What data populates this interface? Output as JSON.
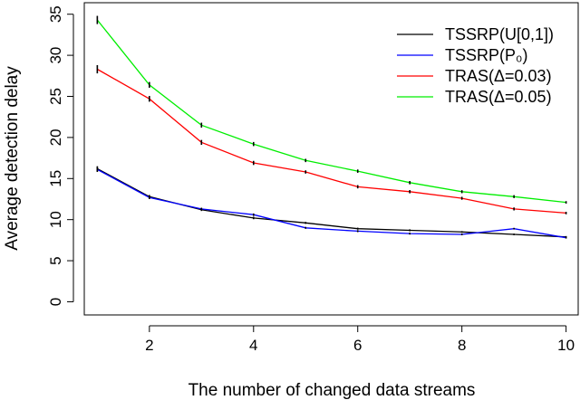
{
  "chart_data": {
    "type": "line",
    "title": "",
    "xlabel": "The number of changed data streams",
    "ylabel": "Average detection delay",
    "x": [
      1,
      2,
      3,
      4,
      5,
      6,
      7,
      8,
      9,
      10
    ],
    "xlim": [
      0.75,
      10.25
    ],
    "ylim": [
      -1.6,
      36.4
    ],
    "xticks": [
      2,
      4,
      6,
      8,
      10
    ],
    "yticks": [
      0,
      5,
      10,
      15,
      20,
      25,
      30,
      35
    ],
    "grid": false,
    "legend_position": "top-right",
    "error_bars": true,
    "series": [
      {
        "name": "TSSRP(U[0,1])",
        "color": "#000000",
        "values": [
          16.2,
          12.8,
          11.2,
          10.2,
          9.6,
          8.9,
          8.7,
          8.5,
          8.2,
          7.9
        ],
        "err": [
          0.3,
          0.2,
          0.15,
          0.15,
          0.12,
          0.12,
          0.12,
          0.1,
          0.1,
          0.1
        ]
      },
      {
        "name": "TSSRP(P₀)",
        "color": "#0000ff",
        "values": [
          16.1,
          12.7,
          11.3,
          10.6,
          9.0,
          8.6,
          8.3,
          8.2,
          8.9,
          7.8
        ],
        "err": [
          0.3,
          0.2,
          0.15,
          0.15,
          0.12,
          0.12,
          0.12,
          0.1,
          0.1,
          0.1
        ]
      },
      {
        "name": "TRAS(Δ=0.03)",
        "color": "#ff0000",
        "values": [
          28.3,
          24.7,
          19.4,
          16.9,
          15.8,
          14.0,
          13.4,
          12.6,
          11.3,
          10.8
        ],
        "err": [
          0.5,
          0.35,
          0.3,
          0.25,
          0.2,
          0.2,
          0.2,
          0.18,
          0.18,
          0.15
        ]
      },
      {
        "name": "TRAS(Δ=0.05)",
        "color": "#00ee00",
        "values": [
          34.3,
          26.4,
          21.5,
          19.2,
          17.2,
          15.9,
          14.5,
          13.4,
          12.8,
          12.1
        ],
        "err": [
          0.5,
          0.35,
          0.3,
          0.25,
          0.2,
          0.2,
          0.2,
          0.18,
          0.18,
          0.15
        ]
      }
    ]
  }
}
